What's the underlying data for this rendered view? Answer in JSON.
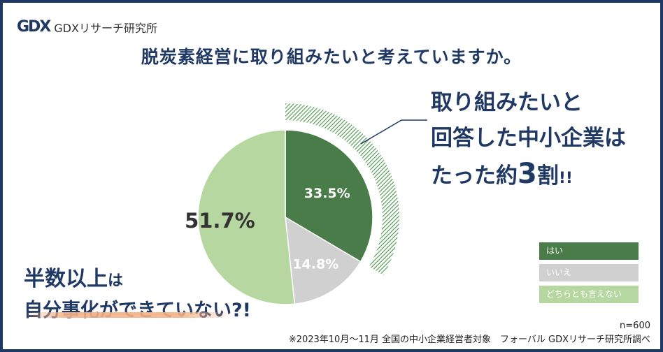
{
  "brand": {
    "mark": "GDX",
    "name": "GDXリサーチ研究所"
  },
  "question": "脱炭素経営に取り組みたいと考えていますか。",
  "chart_data": {
    "type": "pie",
    "categories": [
      "はい",
      "いいえ",
      "どちらとも言えない"
    ],
    "values": [
      33.5,
      14.8,
      51.7
    ],
    "labels": [
      "33.5%",
      "14.8%",
      "51.7%"
    ],
    "colors": [
      "#4a7c4a",
      "#d0d0d0",
      "#b7d7a0"
    ],
    "legend_position": "bottom-right",
    "start": "12 o'clock",
    "direction": "clockwise",
    "highlight": "はい"
  },
  "callout": {
    "line1": "取り組みたいと",
    "line2": "回答した中小企業は",
    "line3_pre": "たった約",
    "line3_num": "3",
    "line3_post": "割",
    "line3_excl": "!!"
  },
  "side_note": {
    "line1_main": "半数以上",
    "line1_small": "は",
    "line2": "自分事化ができていない?!"
  },
  "footer": {
    "n": "n=600",
    "note": "※2023年10月～11月 全国の中小企業経営者対象　フォーバル GDXリサーチ研究所調べ"
  }
}
